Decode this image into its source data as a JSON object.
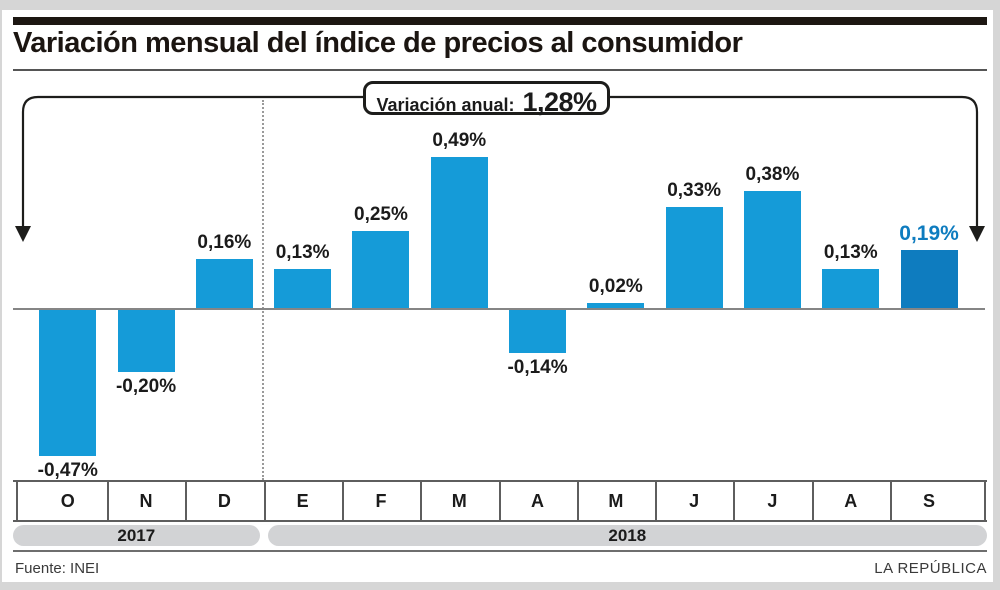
{
  "title": "Variación mensual del índice de precios al consumidor",
  "annotation": {
    "label": "Variación anual:",
    "value": "1,28%"
  },
  "chart_data": {
    "type": "bar",
    "title": "Variación mensual del índice de precios al consumidor",
    "categories": [
      "O",
      "N",
      "D",
      "E",
      "F",
      "M",
      "A",
      "M",
      "J",
      "J",
      "A",
      "S"
    ],
    "values": [
      -0.47,
      -0.2,
      0.16,
      0.13,
      0.25,
      0.49,
      -0.14,
      0.02,
      0.33,
      0.38,
      0.13,
      0.19
    ],
    "value_labels": [
      "-0,47%",
      "-0,20%",
      "0,16%",
      "0,13%",
      "0,25%",
      "0,49%",
      "-0,14%",
      "0,02%",
      "0,33%",
      "0,38%",
      "0,13%",
      "0,19%"
    ],
    "unit": "%",
    "annual_variation": "1,28%",
    "ylim": [
      -0.6,
      0.6
    ],
    "grid": false,
    "legend": "none",
    "bar_color": "#159BD8",
    "highlight_color": "#0E7CBF",
    "highlight_index": 11,
    "axis_color": "#858585"
  },
  "years": [
    {
      "label": "2017",
      "from": 0,
      "to": 2
    },
    {
      "label": "2018",
      "from": 3,
      "to": 11
    }
  ],
  "footer": {
    "source": "Fuente: INEI",
    "credit": "LA REPÚBLICA"
  }
}
